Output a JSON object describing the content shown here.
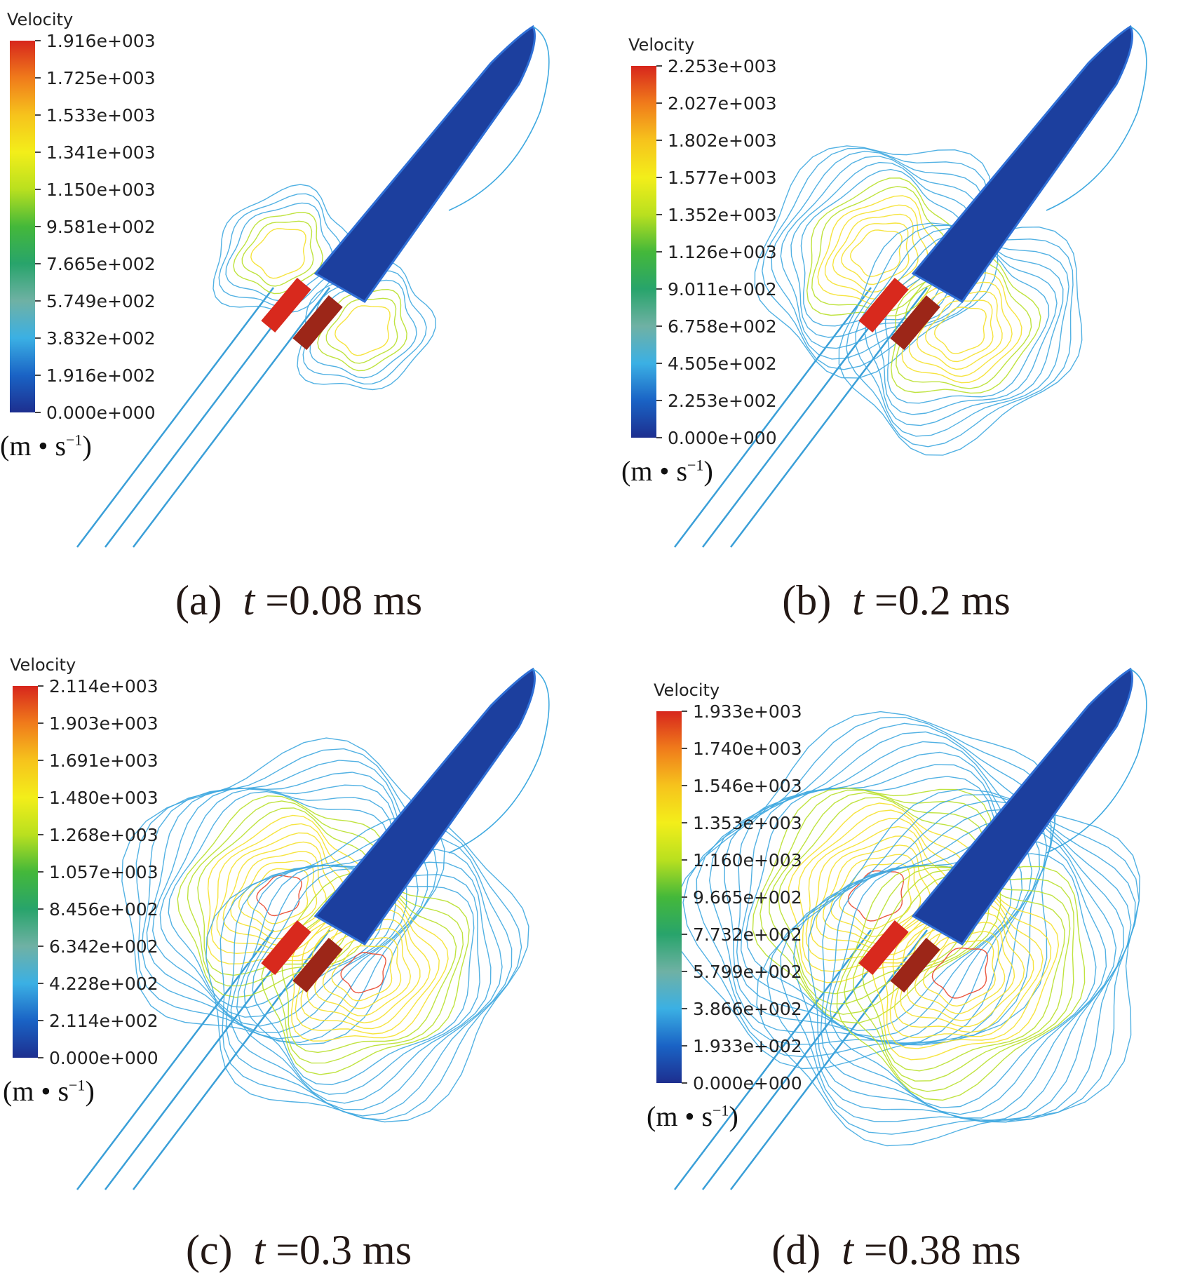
{
  "figure": {
    "panels": [
      {
        "id": "a",
        "legend_title": "Velocity",
        "ticks": [
          "1.916e+003",
          "1.725e+003",
          "1.533e+003",
          "1.341e+003",
          "1.150e+003",
          "9.581e+002",
          "7.665e+002",
          "5.749e+002",
          "3.832e+002",
          "1.916e+002",
          "0.000e+000"
        ],
        "unit_main": "(m • s",
        "unit_sup": "−1",
        "unit_close": ")",
        "caption_label": "(a)",
        "caption_t": "t",
        "caption_value": " =0.08 ms",
        "contour_extent": 0.18
      },
      {
        "id": "b",
        "legend_title": "Velocity",
        "ticks": [
          "2.253e+003",
          "2.027e+003",
          "1.802e+003",
          "1.577e+003",
          "1.352e+003",
          "1.126e+003",
          "9.011e+002",
          "6.758e+002",
          "4.505e+002",
          "2.253e+002",
          "0.000e+000"
        ],
        "unit_main": "(m • s",
        "unit_sup": "−1",
        "unit_close": ")",
        "caption_label": "(b)",
        "caption_t": "t",
        "caption_value": " =0.2 ms",
        "contour_extent": 0.55
      },
      {
        "id": "c",
        "legend_title": "Velocity",
        "ticks": [
          "2.114e+003",
          "1.903e+003",
          "1.691e+003",
          "1.480e+003",
          "1.268e+003",
          "1.057e+003",
          "8.456e+002",
          "6.342e+002",
          "4.228e+002",
          "2.114e+002",
          "0.000e+000"
        ],
        "unit_main": "(m • s",
        "unit_sup": "−1",
        "unit_close": ")",
        "caption_label": "(c)",
        "caption_t": "t",
        "caption_value": " =0.3 ms",
        "contour_extent": 0.8
      },
      {
        "id": "d",
        "legend_title": "Velocity",
        "ticks": [
          "1.933e+003",
          "1.740e+003",
          "1.546e+003",
          "1.353e+003",
          "1.160e+003",
          "9.665e+002",
          "7.732e+002",
          "5.799e+002",
          "3.866e+002",
          "1.933e+002",
          "0.000e+000"
        ],
        "unit_main": "(m • s",
        "unit_sup": "−1",
        "unit_close": ")",
        "caption_label": "(d)",
        "caption_t": "t",
        "caption_value": " =0.38 ms",
        "contour_extent": 1.0
      }
    ],
    "colors": {
      "projectile": "#1c3f9e",
      "projectile_edge": "#2f6fd6",
      "contour_outer": "#3fa9e0",
      "contour_mid": "#b8e02a",
      "contour_inner": "#f5e12a",
      "contour_hot": "#e8452a",
      "barrel": "#3a9fd8",
      "charge_red": "#d8291d",
      "charge_dark": "#9c2618"
    }
  }
}
